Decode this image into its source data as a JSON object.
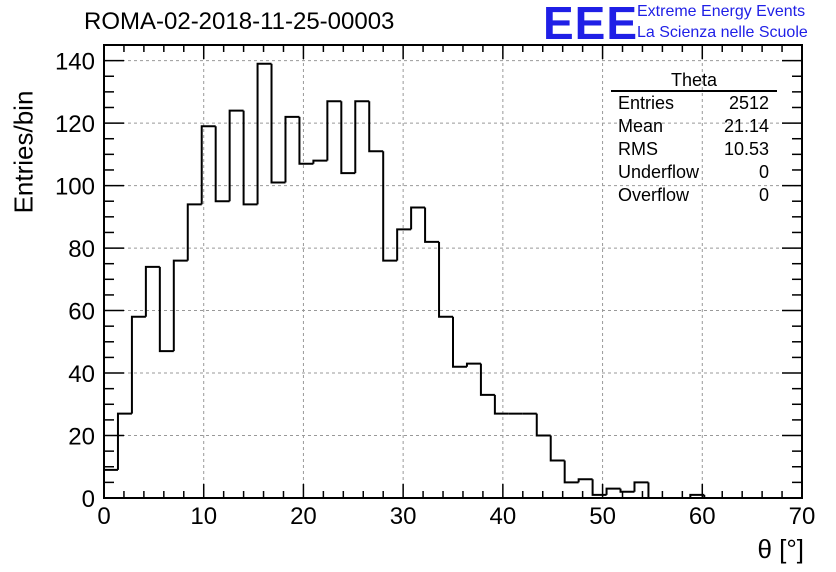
{
  "title": "ROMA-02-2018-11-25-00003",
  "logo": {
    "text": "EEE",
    "line1": "Extreme Energy Events",
    "line2": "La Scienza nelle Scuole",
    "color": "#1f1fe6"
  },
  "stats": {
    "title": "Theta",
    "rows": [
      {
        "label": "Entries",
        "value": "2512"
      },
      {
        "label": "Mean",
        "value": "21.14"
      },
      {
        "label": "RMS",
        "value": "10.53"
      },
      {
        "label": "Underflow",
        "value": "0"
      },
      {
        "label": "Overflow",
        "value": "0"
      }
    ]
  },
  "chart_data": {
    "type": "bar",
    "title": "ROMA-02-2018-11-25-00003",
    "xlabel": "θ [°]",
    "ylabel": "Entries/bin",
    "xlim": [
      0,
      70
    ],
    "ylim": [
      0,
      145
    ],
    "bin_width": 1.4,
    "grid": true,
    "xticks": [
      0,
      10,
      20,
      30,
      40,
      50,
      60,
      70
    ],
    "yticks": [
      0,
      20,
      40,
      60,
      80,
      100,
      120,
      140
    ],
    "values": [
      9,
      27,
      58,
      74,
      47,
      76,
      94,
      119,
      95,
      124,
      94,
      139,
      101,
      122,
      107,
      108,
      127,
      104,
      127,
      111,
      76,
      86,
      93,
      82,
      58,
      42,
      43,
      33,
      27,
      27,
      27,
      20,
      12,
      5,
      6,
      1,
      3,
      2,
      5,
      0,
      0,
      0,
      1,
      0,
      0,
      0,
      0,
      0,
      0,
      0
    ],
    "line_color": "#000000",
    "grid_color": "#999999"
  }
}
